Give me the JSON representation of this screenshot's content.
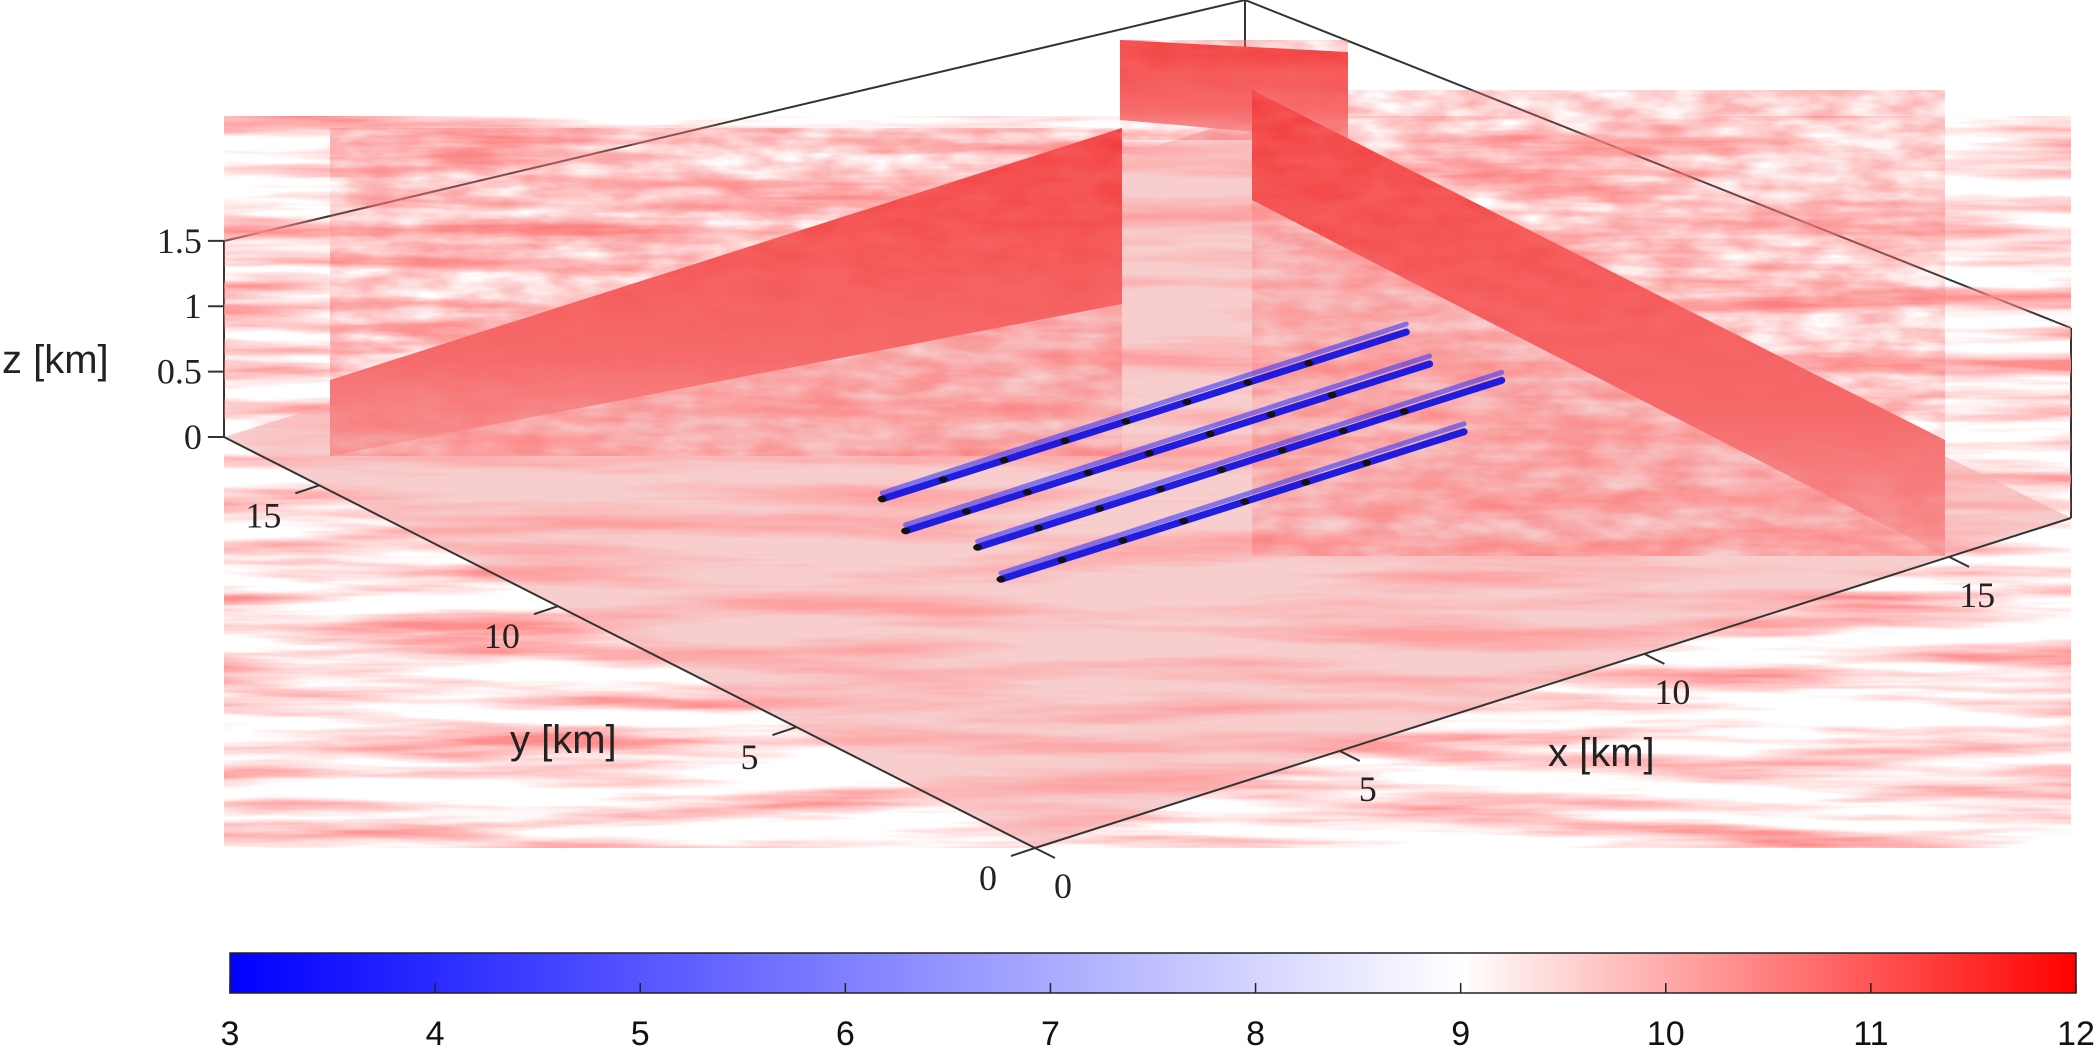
{
  "chart_data": {
    "type": "heatmap",
    "subtype": "3d-wind-field-slices",
    "axes": {
      "x": {
        "label": "x [km]",
        "range": [
          0,
          17
        ],
        "ticks": [
          "0",
          "5",
          "10",
          "15"
        ]
      },
      "y": {
        "label": "y [km]",
        "range": [
          0,
          17
        ],
        "ticks": [
          "0",
          "5",
          "10",
          "15"
        ]
      },
      "z": {
        "label": "z [km]",
        "range": [
          0,
          1.5
        ],
        "ticks": [
          "0",
          "0.5",
          "1",
          "1.5"
        ]
      }
    },
    "colorbar": {
      "range": [
        3,
        12
      ],
      "ticks": [
        "3",
        "4",
        "5",
        "6",
        "7",
        "8",
        "9",
        "10",
        "11",
        "12"
      ],
      "colormap": [
        "#0000ff",
        "#ffffff",
        "#ff0000"
      ],
      "placement": "bottom"
    },
    "turbine_array": {
      "rows": 4,
      "turbines_per_row": [
        8,
        8,
        8,
        7
      ]
    }
  }
}
